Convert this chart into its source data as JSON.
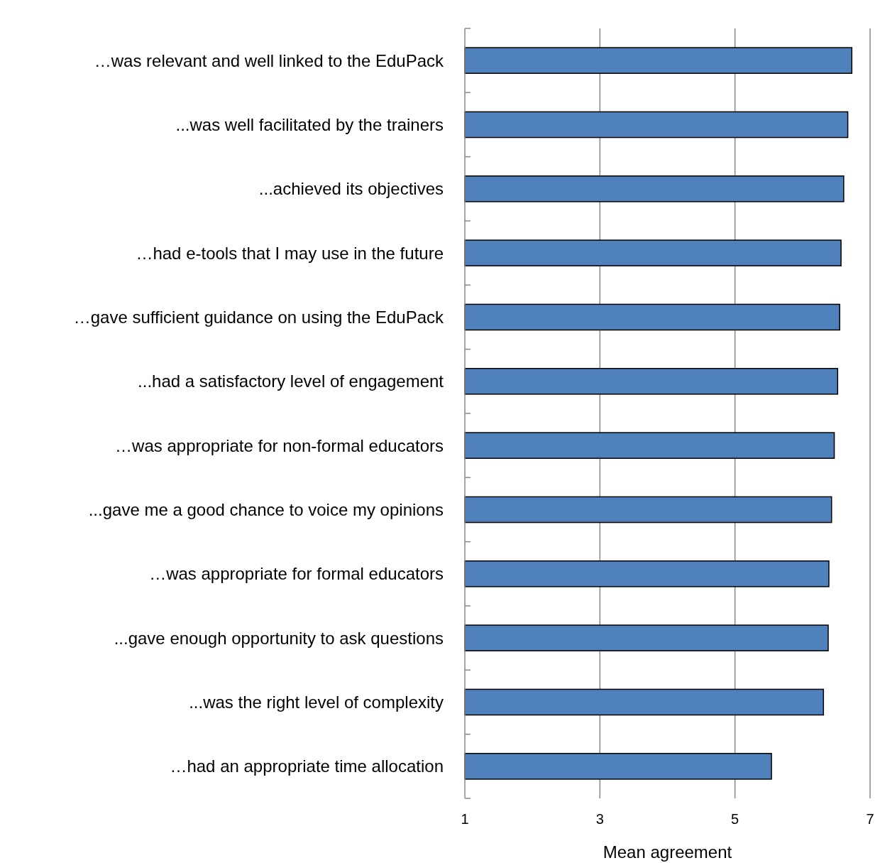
{
  "chart_data": {
    "type": "bar",
    "orientation": "horizontal",
    "xlabel": "Mean agreement",
    "categories": [
      "…was relevant and well linked to the EduPack",
      "...was well facilitated by the trainers",
      "...achieved its objectives",
      "…had e-tools that I may use in the future",
      "…gave sufficient guidance on using the EduPack",
      "...had a satisfactory level of engagement",
      "…was appropriate for non-formal educators",
      "...gave me a good chance to voice my opinions",
      "…was appropriate for formal educators",
      "...gave enough opportunity to ask questions",
      "...was the right level of complexity",
      "…had an appropriate time allocation"
    ],
    "values": [
      6.73,
      6.67,
      6.61,
      6.57,
      6.55,
      6.52,
      6.47,
      6.43,
      6.39,
      6.38,
      6.31,
      5.54
    ],
    "color": "#4f81bd",
    "xlim": [
      1,
      7
    ],
    "xticks": [
      1,
      3,
      5,
      7
    ],
    "grid": "x"
  }
}
